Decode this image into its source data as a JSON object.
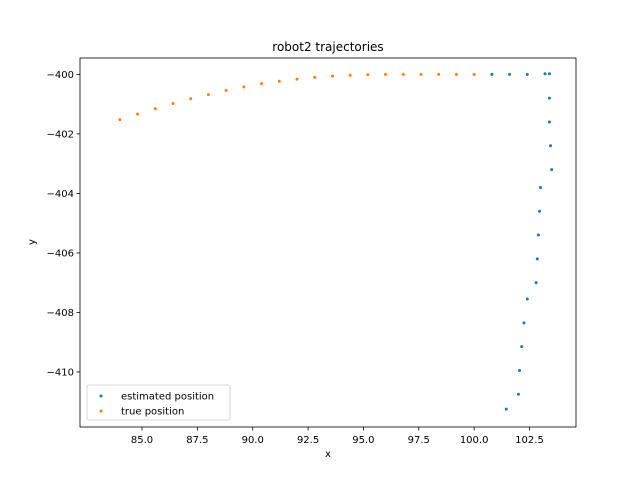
{
  "chart_data": {
    "type": "scatter",
    "title": "robot2 trajectories",
    "xlabel": "x",
    "ylabel": "y",
    "xlim": [
      82.2,
      104.6
    ],
    "ylim": [
      -411.85,
      -399.45
    ],
    "xticks": [
      85.0,
      87.5,
      90.0,
      92.5,
      95.0,
      97.5,
      100.0,
      102.5
    ],
    "xtick_labels": [
      "85.0",
      "87.5",
      "90.0",
      "92.5",
      "95.0",
      "97.5",
      "100.0",
      "102.5"
    ],
    "yticks": [
      -410,
      -408,
      -406,
      -404,
      -402,
      -400
    ],
    "ytick_labels": [
      "−410",
      "−408",
      "−406",
      "−404",
      "−402",
      "−400"
    ],
    "grid": false,
    "legend_position": "lower-left",
    "series": [
      {
        "name": "estimated position",
        "color": "#1f77b4",
        "x": [
          100.8,
          101.6,
          102.4,
          103.2,
          103.4,
          103.4,
          103.4,
          103.45,
          103.5,
          103.0,
          102.95,
          102.9,
          102.85,
          102.8,
          102.4,
          102.25,
          102.15,
          102.05,
          102.0,
          101.45
        ],
        "y": [
          -400.0,
          -400.0,
          -400.0,
          -399.98,
          -399.98,
          -400.8,
          -401.6,
          -402.4,
          -403.2,
          -403.8,
          -404.6,
          -405.4,
          -406.2,
          -407.0,
          -407.55,
          -408.35,
          -409.15,
          -409.95,
          -410.75,
          -411.25
        ]
      },
      {
        "name": "true position",
        "color": "#ff7f0e",
        "x": [
          84.0,
          84.8,
          85.6,
          86.4,
          87.2,
          88.0,
          88.8,
          89.6,
          90.4,
          91.2,
          92.0,
          92.8,
          93.6,
          94.4,
          95.2,
          96.0,
          96.8,
          97.6,
          98.4,
          99.2,
          100.0
        ],
        "y": [
          -401.52,
          -401.33,
          -401.15,
          -400.98,
          -400.82,
          -400.68,
          -400.54,
          -400.42,
          -400.31,
          -400.23,
          -400.16,
          -400.1,
          -400.06,
          -400.03,
          -400.01,
          -400.0,
          -400.0,
          -400.0,
          -400.0,
          -400.0,
          -400.0
        ]
      }
    ]
  }
}
